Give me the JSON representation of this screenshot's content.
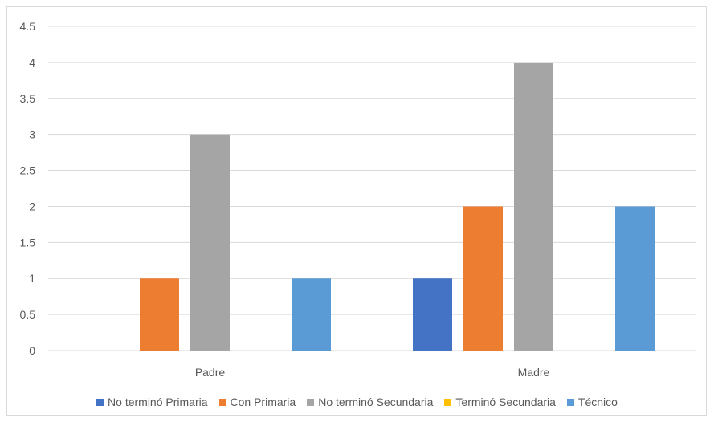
{
  "chart_data": {
    "type": "bar",
    "title": "",
    "xlabel": "",
    "ylabel": "",
    "categories": [
      "Padre",
      "Madre"
    ],
    "ylim": [
      0,
      4.5
    ],
    "yticks": [
      "0",
      "0.5",
      "1",
      "1.5",
      "2",
      "2.5",
      "3",
      "3.5",
      "4",
      "4.5"
    ],
    "grid": true,
    "legend_position": "bottom",
    "series": [
      {
        "name": "No terminó Primaria",
        "color": "#4472C4",
        "values": [
          0,
          1
        ]
      },
      {
        "name": "Con Primaria",
        "color": "#ED7D31",
        "values": [
          1,
          2
        ]
      },
      {
        "name": "No terminó Secundaria",
        "color": "#A5A5A5",
        "values": [
          3,
          4
        ]
      },
      {
        "name": "Terminó Secundaria",
        "color": "#FFC000",
        "values": [
          0,
          0
        ]
      },
      {
        "name": "Técnico",
        "color": "#5B9BD5",
        "values": [
          1,
          2
        ]
      }
    ]
  }
}
